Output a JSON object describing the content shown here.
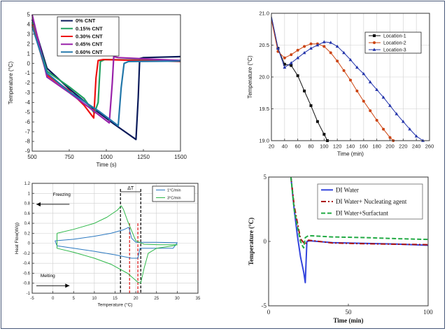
{
  "colors": {
    "border": "#4a5a7a",
    "grid": "#c8c8c8",
    "axis": "#333333"
  },
  "chart_data": [
    {
      "type": "line",
      "xlabel": "Time (s)",
      "ylabel": "Temperature (°C)",
      "xlim": [
        500,
        1500
      ],
      "ylim": [
        -9,
        5
      ],
      "xticks": [
        500,
        750,
        1000,
        1250,
        1500
      ],
      "yticks": [
        -9,
        -8,
        -7,
        -6,
        -5,
        -4,
        -3,
        -2,
        -1,
        0,
        1,
        2,
        3,
        4,
        5
      ],
      "grid": false,
      "legend": "top-center",
      "series": [
        {
          "name": "0% CNT",
          "color": "#0a1a5a",
          "points": [
            [
              500,
              4.5
            ],
            [
              600,
              -0.5
            ],
            [
              750,
              -2.6
            ],
            [
              900,
              -4.5
            ],
            [
              1050,
              -6.2
            ],
            [
              1200,
              -7.8
            ],
            [
              1215,
              -3.5
            ],
            [
              1225,
              0.5
            ],
            [
              1250,
              0.6
            ],
            [
              1500,
              0.7
            ]
          ]
        },
        {
          "name": "0.15% CNT",
          "color": "#20a060",
          "points": [
            [
              500,
              4.2
            ],
            [
              600,
              -0.8
            ],
            [
              750,
              -2.4
            ],
            [
              850,
              -3.6
            ],
            [
              920,
              -5.1
            ],
            [
              945,
              -4.0
            ],
            [
              960,
              0.2
            ],
            [
              990,
              0.4
            ],
            [
              1500,
              0.3
            ]
          ]
        },
        {
          "name": "0.30% CNT",
          "color": "#ee1111",
          "points": [
            [
              500,
              4.0
            ],
            [
              600,
              -1.2
            ],
            [
              750,
              -2.8
            ],
            [
              850,
              -4.3
            ],
            [
              915,
              -5.6
            ],
            [
              930,
              -1.5
            ],
            [
              945,
              0.3
            ],
            [
              980,
              0.4
            ],
            [
              1500,
              0.2
            ]
          ]
        },
        {
          "name": "0.45% CNT",
          "color": "#9922aa",
          "points": [
            [
              500,
              5.0
            ],
            [
              600,
              -1.4
            ],
            [
              750,
              -3.0
            ],
            [
              900,
              -4.7
            ],
            [
              1020,
              -6.1
            ],
            [
              1040,
              -2.0
            ],
            [
              1050,
              0.7
            ],
            [
              1080,
              0.6
            ],
            [
              1500,
              0.3
            ]
          ]
        },
        {
          "name": "0.60% CNT",
          "color": "#2277aa",
          "points": [
            [
              500,
              3.8
            ],
            [
              600,
              -1.0
            ],
            [
              750,
              -2.9
            ],
            [
              950,
              -4.9
            ],
            [
              1080,
              -6.4
            ],
            [
              1100,
              -2.5
            ],
            [
              1120,
              0.0
            ],
            [
              1150,
              0.2
            ],
            [
              1500,
              0.25
            ]
          ]
        }
      ]
    },
    {
      "type": "line",
      "xlabel": "Time (min)",
      "ylabel": "Temperature (°C)",
      "xlim": [
        20,
        260
      ],
      "ylim": [
        19.0,
        21.0
      ],
      "xticks": [
        20,
        40,
        60,
        80,
        100,
        120,
        140,
        160,
        180,
        200,
        220,
        240,
        260
      ],
      "yticks": [
        19.0,
        19.5,
        20.0,
        20.5,
        21.0
      ],
      "grid": true,
      "legend": "top-right",
      "series": [
        {
          "name": "Location-1",
          "color": "#111111",
          "marker": "square",
          "points": [
            [
              20,
              20.95
            ],
            [
              30,
              20.45
            ],
            [
              40,
              20.2
            ],
            [
              50,
              20.18
            ],
            [
              60,
              20.02
            ],
            [
              70,
              19.78
            ],
            [
              80,
              19.55
            ],
            [
              90,
              19.3
            ],
            [
              100,
              19.1
            ],
            [
              105,
              19.0
            ]
          ]
        },
        {
          "name": "Location-2",
          "color": "#cc4411",
          "marker": "circle",
          "points": [
            [
              20,
              20.9
            ],
            [
              30,
              20.4
            ],
            [
              40,
              20.3
            ],
            [
              50,
              20.35
            ],
            [
              60,
              20.42
            ],
            [
              70,
              20.48
            ],
            [
              80,
              20.52
            ],
            [
              90,
              20.52
            ],
            [
              100,
              20.48
            ],
            [
              110,
              20.38
            ],
            [
              120,
              20.25
            ],
            [
              130,
              20.1
            ],
            [
              140,
              19.95
            ],
            [
              150,
              19.78
            ],
            [
              160,
              19.62
            ],
            [
              170,
              19.47
            ],
            [
              180,
              19.32
            ],
            [
              190,
              19.18
            ],
            [
              200,
              19.05
            ],
            [
              205,
              19.0
            ]
          ]
        },
        {
          "name": "Location-3",
          "color": "#2233aa",
          "marker": "triangle",
          "points": [
            [
              20,
              20.95
            ],
            [
              30,
              20.45
            ],
            [
              40,
              20.15
            ],
            [
              50,
              20.22
            ],
            [
              60,
              20.3
            ],
            [
              70,
              20.38
            ],
            [
              80,
              20.45
            ],
            [
              90,
              20.5
            ],
            [
              100,
              20.55
            ],
            [
              110,
              20.54
            ],
            [
              120,
              20.48
            ],
            [
              130,
              20.38
            ],
            [
              140,
              20.27
            ],
            [
              150,
              20.15
            ],
            [
              160,
              20.05
            ],
            [
              170,
              19.92
            ],
            [
              180,
              19.8
            ],
            [
              190,
              19.68
            ],
            [
              200,
              19.55
            ],
            [
              210,
              19.42
            ],
            [
              220,
              19.3
            ],
            [
              230,
              19.18
            ],
            [
              240,
              19.07
            ],
            [
              250,
              19.0
            ]
          ]
        }
      ]
    },
    {
      "type": "line",
      "xlabel": "Temperature (°C)",
      "ylabel": "Heat Flow(W/g)",
      "xlim": [
        -5,
        35
      ],
      "ylim": [
        -1,
        1.2
      ],
      "xticks": [
        -5,
        0,
        5,
        10,
        15,
        20,
        25,
        30,
        35
      ],
      "yticks": [
        -1,
        -0.8,
        -0.6,
        -0.4,
        -0.2,
        0,
        0.2,
        0.4,
        0.6,
        0.8,
        1,
        1.2
      ],
      "grid": true,
      "legend": "top-right",
      "annotations": {
        "freezing": "Freezing",
        "melting": "Melting",
        "delta": "ΔT",
        "markers": [
          18.5,
          20.5
        ],
        "dashed_black": [
          16.3,
          21.2
        ]
      },
      "series": [
        {
          "name": "1°C/min",
          "color": "#2a78c0",
          "points": [
            [
              0.5,
              0.05
            ],
            [
              5,
              0.08
            ],
            [
              10,
              0.14
            ],
            [
              14,
              0.2
            ],
            [
              17,
              0.27
            ],
            [
              18.3,
              0.32
            ],
            [
              19,
              0.1
            ],
            [
              20,
              0.02
            ],
            [
              25,
              0.02
            ],
            [
              30,
              0.01
            ],
            [
              29,
              -0.1
            ],
            [
              25,
              -0.1
            ],
            [
              21,
              -0.1
            ],
            [
              20.5,
              -0.3
            ],
            [
              19,
              -0.3
            ],
            [
              15,
              -0.23
            ],
            [
              10,
              -0.16
            ],
            [
              5,
              -0.1
            ],
            [
              1,
              -0.05
            ],
            [
              0.5,
              0.05
            ]
          ]
        },
        {
          "name": "3°C/min",
          "color": "#2fb84a",
          "points": [
            [
              1,
              0.2
            ],
            [
              5,
              0.28
            ],
            [
              10,
              0.4
            ],
            [
              13,
              0.52
            ],
            [
              15.5,
              0.66
            ],
            [
              16.5,
              0.75
            ],
            [
              17,
              0.68
            ],
            [
              18,
              0.45
            ],
            [
              20,
              0.05
            ],
            [
              22,
              -0.02
            ],
            [
              26,
              -0.03
            ],
            [
              30,
              -0.03
            ],
            [
              29,
              -0.05
            ],
            [
              25,
              -0.1
            ],
            [
              23,
              -0.2
            ],
            [
              22,
              -0.5
            ],
            [
              21.2,
              -0.8
            ],
            [
              20.5,
              -0.78
            ],
            [
              18,
              -0.6
            ],
            [
              14,
              -0.42
            ],
            [
              10,
              -0.3
            ],
            [
              5,
              -0.18
            ],
            [
              1,
              -0.1
            ],
            [
              1,
              0.2
            ]
          ]
        }
      ]
    },
    {
      "type": "line",
      "xlabel": "Time (min)",
      "ylabel": "Temperature (°C)",
      "xlim": [
        0,
        100
      ],
      "ylim": [
        -5,
        5
      ],
      "xticks": [
        0,
        50,
        100
      ],
      "yticks": [
        -5,
        0,
        5
      ],
      "grid": false,
      "legend": "top-left",
      "series": [
        {
          "name": "DI Water",
          "color": "#3344dd",
          "style": "solid",
          "points": [
            [
              14,
              5
            ],
            [
              16,
              2.5
            ],
            [
              18,
              0.5
            ],
            [
              20,
              -1.2
            ],
            [
              22,
              -2.4
            ],
            [
              23,
              -3.2
            ],
            [
              24,
              0.0
            ],
            [
              26,
              0.05
            ],
            [
              40,
              -0.1
            ],
            [
              60,
              -0.15
            ],
            [
              80,
              -0.2
            ],
            [
              100,
              -0.3
            ]
          ]
        },
        {
          "name": "DI Water+ Nucleating agent",
          "color": "#aa1111",
          "style": "dashdot",
          "points": [
            [
              14,
              5
            ],
            [
              16,
              2.8
            ],
            [
              18,
              1.5
            ],
            [
              20,
              0.2
            ],
            [
              22,
              -0.1
            ],
            [
              23,
              -0.2
            ],
            [
              25,
              0.1
            ],
            [
              40,
              -0.12
            ],
            [
              60,
              -0.18
            ],
            [
              80,
              -0.22
            ],
            [
              100,
              -0.25
            ]
          ]
        },
        {
          "name": "DI Water+Surfactant",
          "color": "#22aa44",
          "style": "dashed",
          "points": [
            [
              14,
              5
            ],
            [
              16,
              2.5
            ],
            [
              18,
              1.2
            ],
            [
              20,
              0.0
            ],
            [
              21,
              -0.3
            ],
            [
              22,
              -0.5
            ],
            [
              23,
              0.3
            ],
            [
              25,
              0.45
            ],
            [
              40,
              0.35
            ],
            [
              60,
              0.3
            ],
            [
              80,
              0.22
            ],
            [
              100,
              0.15
            ]
          ]
        }
      ]
    }
  ]
}
